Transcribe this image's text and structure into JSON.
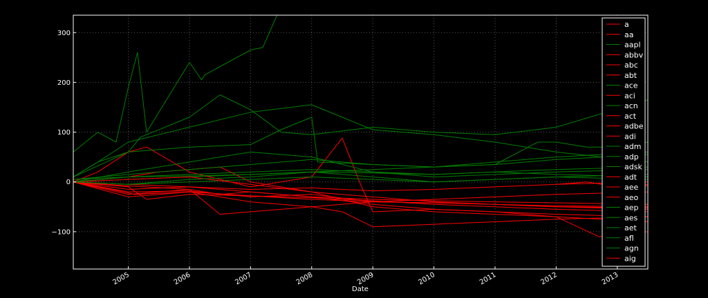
{
  "chart_data": {
    "type": "line",
    "title": "",
    "xlabel": "Date",
    "ylabel": "",
    "xlim": [
      2004.1,
      2013.5
    ],
    "ylim": [
      -175,
      335
    ],
    "grid": true,
    "legend_position": "right",
    "x_ticks": [
      2005,
      2006,
      2007,
      2008,
      2009,
      2010,
      2011,
      2012,
      2013
    ],
    "x_tick_labels": [
      "2005",
      "2006",
      "2007",
      "2008",
      "2009",
      "2010",
      "2011",
      "2012",
      "2013"
    ],
    "y_ticks": [
      -100,
      0,
      100,
      200,
      300
    ],
    "y_tick_labels": [
      "−100",
      "0",
      "100",
      "200",
      "300"
    ],
    "colors": {
      "up": "#008000",
      "down": "#ff0000",
      "background": "#000000",
      "axes": "#ffffff"
    },
    "series": [
      {
        "name": "a",
        "color": "#ff0000",
        "x": [
          2004.1,
          2004.6,
          2005.1,
          2006.0,
          2007.0,
          2008.0,
          2009.0,
          2010.0,
          2011.0,
          2012.0,
          2013.5
        ],
        "y": [
          0,
          -12,
          -25,
          -20,
          -28,
          -35,
          -40,
          -42,
          -45,
          -48,
          -50
        ]
      },
      {
        "name": "aa",
        "color": "#ff0000",
        "x": [
          2004.1,
          2005.0,
          2006.0,
          2006.5,
          2007.0,
          2008.0,
          2009.0,
          2010.0,
          2011.0,
          2012.0,
          2013.5
        ],
        "y": [
          0,
          -8,
          -15,
          -25,
          -20,
          -30,
          -45,
          -55,
          -60,
          -65,
          -70
        ]
      },
      {
        "name": "aapl",
        "color": "#008000",
        "x": [
          2004.1,
          2004.5,
          2004.8,
          2005.0,
          2005.15,
          2005.3,
          2006.0,
          2006.2,
          2006.25,
          2007.0,
          2007.2,
          2007.45
        ],
        "y": [
          60,
          100,
          80,
          190,
          260,
          100,
          240,
          205,
          215,
          265,
          270,
          340
        ]
      },
      {
        "name": "abbv",
        "color": "#ff0000",
        "x": [
          2012.0,
          2012.5,
          2013.0,
          2013.5
        ],
        "y": [
          -5,
          0,
          -10,
          -5
        ]
      },
      {
        "name": "abc",
        "color": "#ff0000",
        "x": [
          2004.1,
          2005.0,
          2005.3,
          2006.0,
          2007.0,
          2008.0,
          2009.0,
          2010.0,
          2011.0,
          2012.0,
          2013.5
        ],
        "y": [
          0,
          -10,
          -35,
          -25,
          -28,
          -32,
          -38,
          -45,
          -50,
          -55,
          -60
        ]
      },
      {
        "name": "abt",
        "color": "#ff0000",
        "x": [
          2004.1,
          2005.0,
          2006.0,
          2007.0,
          2008.0,
          2009.0,
          2010.0,
          2011.0,
          2012.0,
          2013.5
        ],
        "y": [
          0,
          -5,
          -10,
          -15,
          -12,
          -18,
          -15,
          -10,
          -5,
          0
        ]
      },
      {
        "name": "ace",
        "color": "#008000",
        "x": [
          2004.1,
          2005.0,
          2006.0,
          2007.0,
          2008.0,
          2009.0,
          2010.0,
          2011.0,
          2012.0,
          2013.5
        ],
        "y": [
          0,
          5,
          10,
          15,
          20,
          25,
          30,
          35,
          45,
          55
        ]
      },
      {
        "name": "aci",
        "color": "#ff0000",
        "x": [
          2004.1,
          2004.5,
          2005.0,
          2005.3,
          2006.0,
          2007.0,
          2008.0,
          2008.5,
          2008.8,
          2009.0,
          2010.0,
          2011.0,
          2012.0,
          2013.5
        ],
        "y": [
          0,
          20,
          60,
          70,
          20,
          -10,
          10,
          88,
          -5,
          -60,
          -55,
          -60,
          -70,
          -80
        ]
      },
      {
        "name": "acn",
        "color": "#008000",
        "x": [
          2004.1,
          2005.0,
          2006.0,
          2007.0,
          2007.5,
          2008.0,
          2008.1,
          2009.0,
          2010.0,
          2011.0,
          2011.7,
          2012.0,
          2012.5,
          2013.0,
          2013.5
        ],
        "y": [
          10,
          60,
          70,
          75,
          105,
          130,
          40,
          35,
          30,
          35,
          80,
          80,
          70,
          70,
          80
        ]
      },
      {
        "name": "act",
        "color": "#ff0000",
        "x": [
          2004.1,
          2005.0,
          2005.5,
          2006.0,
          2006.5,
          2007.0,
          2008.0,
          2009.0,
          2010.0,
          2011.0,
          2012.0,
          2013.5
        ],
        "y": [
          0,
          10,
          20,
          25,
          30,
          0,
          -20,
          -30,
          -40,
          -45,
          -50,
          -55
        ]
      },
      {
        "name": "adbe",
        "color": "#ff0000",
        "x": [
          2004.1,
          2005.0,
          2006.0,
          2006.5,
          2007.0,
          2008.0,
          2009.0,
          2010.0,
          2011.0,
          2012.0,
          2013.5
        ],
        "y": [
          0,
          -25,
          -15,
          -65,
          -60,
          -50,
          -40,
          -35,
          -30,
          -25,
          -20
        ]
      },
      {
        "name": "adi",
        "color": "#ff0000",
        "x": [
          2004.1,
          2005.0,
          2006.0,
          2007.0,
          2008.0,
          2009.0,
          2010.0,
          2011.0,
          2012.0,
          2013.5
        ],
        "y": [
          0,
          -20,
          -18,
          -30,
          -25,
          -40,
          -42,
          -45,
          -50,
          -52
        ]
      },
      {
        "name": "adm",
        "color": "#008000",
        "x": [
          2004.1,
          2005.0,
          2006.0,
          2007.0,
          2008.0,
          2009.0,
          2010.0,
          2011.0,
          2012.0,
          2013.5
        ],
        "y": [
          0,
          -5,
          0,
          5,
          10,
          5,
          0,
          5,
          10,
          5
        ]
      },
      {
        "name": "adp",
        "color": "#008000",
        "x": [
          2004.1,
          2005.0,
          2006.0,
          2007.0,
          2008.0,
          2009.0,
          2010.0,
          2011.0,
          2012.0,
          2013.5
        ],
        "y": [
          5,
          10,
          12,
          15,
          20,
          18,
          15,
          20,
          25,
          30
        ]
      },
      {
        "name": "adsk",
        "color": "#008000",
        "x": [
          2004.1,
          2004.5,
          2005.0,
          2005.2,
          2006.0,
          2006.5,
          2007.0,
          2007.5,
          2008.0,
          2009.0,
          2010.0,
          2011.0,
          2012.0,
          2013.5
        ],
        "y": [
          10,
          40,
          60,
          90,
          130,
          175,
          145,
          100,
          95,
          110,
          100,
          95,
          110,
          165
        ]
      },
      {
        "name": "adt",
        "color": "#ff0000",
        "x": [
          2012.8,
          2013.0,
          2013.5
        ],
        "y": [
          -5,
          -10,
          -8
        ]
      },
      {
        "name": "aee",
        "color": "#ff0000",
        "x": [
          2004.1,
          2005.0,
          2006.0,
          2007.0,
          2008.0,
          2009.0,
          2010.0,
          2011.0,
          2012.0,
          2013.5
        ],
        "y": [
          0,
          -15,
          -10,
          -20,
          -30,
          -35,
          -38,
          -40,
          -42,
          -45
        ]
      },
      {
        "name": "aeo",
        "color": "#ff0000",
        "x": [
          2004.1,
          2005.0,
          2006.0,
          2007.0,
          2008.0,
          2009.0,
          2010.0,
          2011.0,
          2012.0,
          2012.7,
          2013.5
        ],
        "y": [
          0,
          5,
          10,
          -5,
          -20,
          -50,
          -60,
          -65,
          -70,
          -110,
          -100
        ]
      },
      {
        "name": "aep",
        "color": "#008000",
        "x": [
          2004.1,
          2005.0,
          2006.0,
          2007.0,
          2008.0,
          2009.0,
          2010.0,
          2011.0,
          2012.0,
          2013.5
        ],
        "y": [
          0,
          10,
          15,
          20,
          25,
          20,
          15,
          20,
          15,
          10
        ]
      },
      {
        "name": "aes",
        "color": "#008000",
        "x": [
          2004.1,
          2005.0,
          2006.0,
          2007.0,
          2008.0,
          2009.0,
          2010.0,
          2011.0,
          2012.0,
          2013.5
        ],
        "y": [
          0,
          20,
          40,
          60,
          50,
          20,
          10,
          15,
          20,
          25
        ]
      },
      {
        "name": "aet",
        "color": "#008000",
        "x": [
          2004.1,
          2004.5,
          2005.0,
          2006.0,
          2007.0,
          2008.0,
          2009.0,
          2010.0,
          2011.0,
          2012.0,
          2013.5
        ],
        "y": [
          10,
          40,
          80,
          110,
          140,
          155,
          105,
          95,
          80,
          60,
          40
        ]
      },
      {
        "name": "afl",
        "color": "#008000",
        "x": [
          2004.1,
          2005.0,
          2006.0,
          2007.0,
          2008.0,
          2009.0,
          2010.0,
          2011.0,
          2012.0,
          2013.5
        ],
        "y": [
          0,
          -5,
          5,
          10,
          20,
          10,
          0,
          5,
          10,
          15
        ]
      },
      {
        "name": "agn",
        "color": "#008000",
        "x": [
          2004.1,
          2005.0,
          2006.0,
          2007.0,
          2008.0,
          2009.0,
          2010.0,
          2011.0,
          2012.0,
          2013.5
        ],
        "y": [
          5,
          15,
          25,
          35,
          45,
          35,
          30,
          40,
          50,
          60
        ]
      },
      {
        "name": "aig",
        "color": "#ff0000",
        "x": [
          2004.1,
          2005.0,
          2006.0,
          2007.0,
          2008.0,
          2008.5,
          2009.0,
          2010.0,
          2011.0,
          2012.0,
          2013.5
        ],
        "y": [
          0,
          -30,
          -20,
          -40,
          -50,
          -60,
          -90,
          -85,
          -80,
          -75,
          -70
        ]
      }
    ]
  }
}
